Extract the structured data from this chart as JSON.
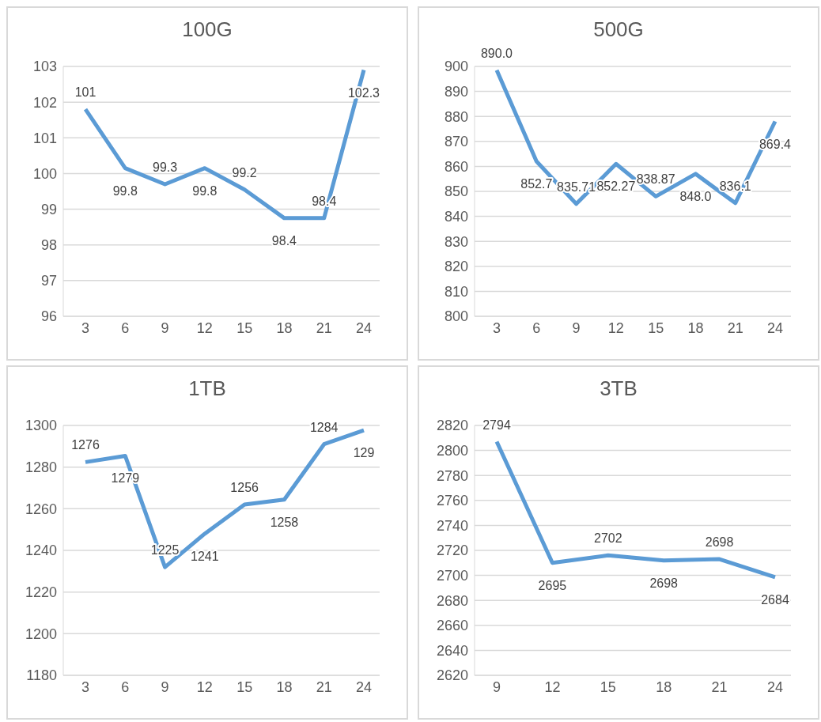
{
  "chart_data": [
    {
      "type": "line",
      "title": "100G",
      "categories": [
        "3",
        "6",
        "9",
        "12",
        "15",
        "18",
        "21",
        "24"
      ],
      "color": "#5b9bd5",
      "values": [
        101.8,
        100.15,
        99.7,
        100.15,
        99.55,
        98.75,
        98.75,
        102.9
      ],
      "ylim": [
        96,
        103
      ],
      "yticks": [
        96,
        97,
        98,
        99,
        100,
        101,
        102,
        103
      ],
      "grid": "y",
      "annotations": [
        "101",
        "99.8",
        "99.3",
        "99.8",
        "99.2",
        "98.4",
        "98.4",
        "102.3"
      ]
    },
    {
      "type": "line",
      "title": "500G",
      "categories": [
        "3",
        "6",
        "9",
        "12",
        "15",
        "18",
        "21",
        "24"
      ],
      "color": "#5b9bd5",
      "values": [
        898.5,
        862,
        845,
        861,
        848,
        857,
        845.3,
        878
      ],
      "ylim": [
        800,
        900
      ],
      "yticks": [
        800,
        810,
        820,
        830,
        840,
        850,
        860,
        870,
        880,
        890,
        900
      ],
      "grid": "y",
      "annotations": [
        "890.0",
        "852.7",
        "835.71",
        "852.27",
        "838.87",
        "848.0",
        "836.1",
        "869.4"
      ]
    },
    {
      "type": "line",
      "title": "1TB",
      "categories": [
        "3",
        "6",
        "9",
        "12",
        "15",
        "18",
        "21",
        "24"
      ],
      "color": "#5b9bd5",
      "values": [
        1282.4,
        1285.4,
        1232,
        1248,
        1262,
        1264.4,
        1291,
        1297.7
      ],
      "ylim": [
        1180,
        1300
      ],
      "yticks": [
        1180,
        1200,
        1220,
        1240,
        1260,
        1280,
        1300
      ],
      "grid": "y",
      "annotations": [
        "1276",
        "1279",
        "1225",
        "1241",
        "1256",
        "1258",
        "1284",
        "129"
      ]
    },
    {
      "type": "line",
      "title": "3TB",
      "categories": [
        "9",
        "12",
        "15",
        "18",
        "21",
        "24"
      ],
      "color": "#5b9bd5",
      "values": [
        2807,
        2710,
        2716,
        2712,
        2713,
        2698.5
      ],
      "ylim": [
        2620,
        2820
      ],
      "yticks": [
        2620,
        2640,
        2660,
        2680,
        2700,
        2720,
        2740,
        2760,
        2780,
        2800,
        2820
      ],
      "grid": "y",
      "annotations": [
        "2794",
        "2695",
        "2702",
        "2698",
        "2698",
        "2684"
      ]
    }
  ]
}
